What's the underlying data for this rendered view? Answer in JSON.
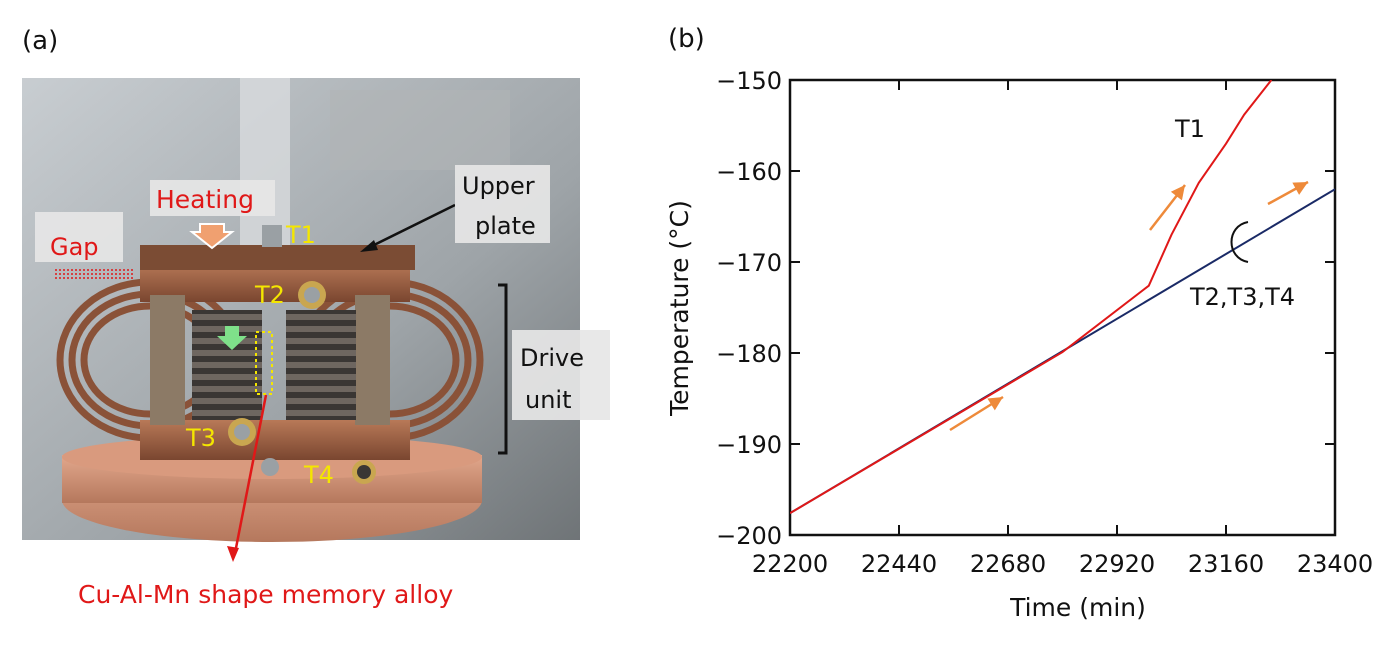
{
  "panel_a": {
    "label": "(a)",
    "photo_labels": {
      "heating": "Heating",
      "gap": "Gap",
      "upper_plate_line1": "Upper",
      "upper_plate_line2": "plate",
      "drive_unit_line1": "Drive",
      "drive_unit_line2": "unit",
      "t1": "T1",
      "t2": "T2",
      "t3": "T3",
      "t4": "T4"
    },
    "caption": "Cu-Al-Mn shape memory alloy",
    "colors": {
      "red": "#e01818",
      "yellow": "#f4e600",
      "orange_arrow": "#f0a070",
      "green_arrow": "#7fe08a"
    }
  },
  "panel_b": {
    "label": "(b)"
  },
  "chart_data": {
    "type": "line",
    "xlabel": "Time (min)",
    "ylabel": "Temperature (°C)",
    "xlim": [
      22200,
      23400
    ],
    "ylim": [
      -200,
      -150
    ],
    "xticks": [
      22200,
      22440,
      22680,
      22920,
      23160,
      23400
    ],
    "yticks": [
      -150,
      -160,
      -170,
      -180,
      -190,
      -200
    ],
    "xtick_labels": [
      "22200",
      "22440",
      "22680",
      "22920",
      "23160",
      "23400"
    ],
    "ytick_labels": [
      "−150",
      "−160",
      "−170",
      "−180",
      "−190",
      "−200"
    ],
    "grid": false,
    "series": [
      {
        "name": "T2,T3,T4",
        "color": "#1a2a66",
        "x": [
          22200,
          23400
        ],
        "y": [
          -197.6,
          -162.0
        ]
      },
      {
        "name": "T1",
        "color": "#e01818",
        "x": [
          22200,
          22800,
          22990,
          23040,
          23100,
          23160,
          23200,
          23260
        ],
        "y": [
          -197.6,
          -179.9,
          -172.6,
          -167.0,
          -161.3,
          -157.0,
          -153.8,
          -150.0
        ]
      }
    ],
    "annotations": {
      "t1_label": "T1",
      "group_label": "T2,T3,T4"
    },
    "arrow_color": "#ee8a3a"
  }
}
